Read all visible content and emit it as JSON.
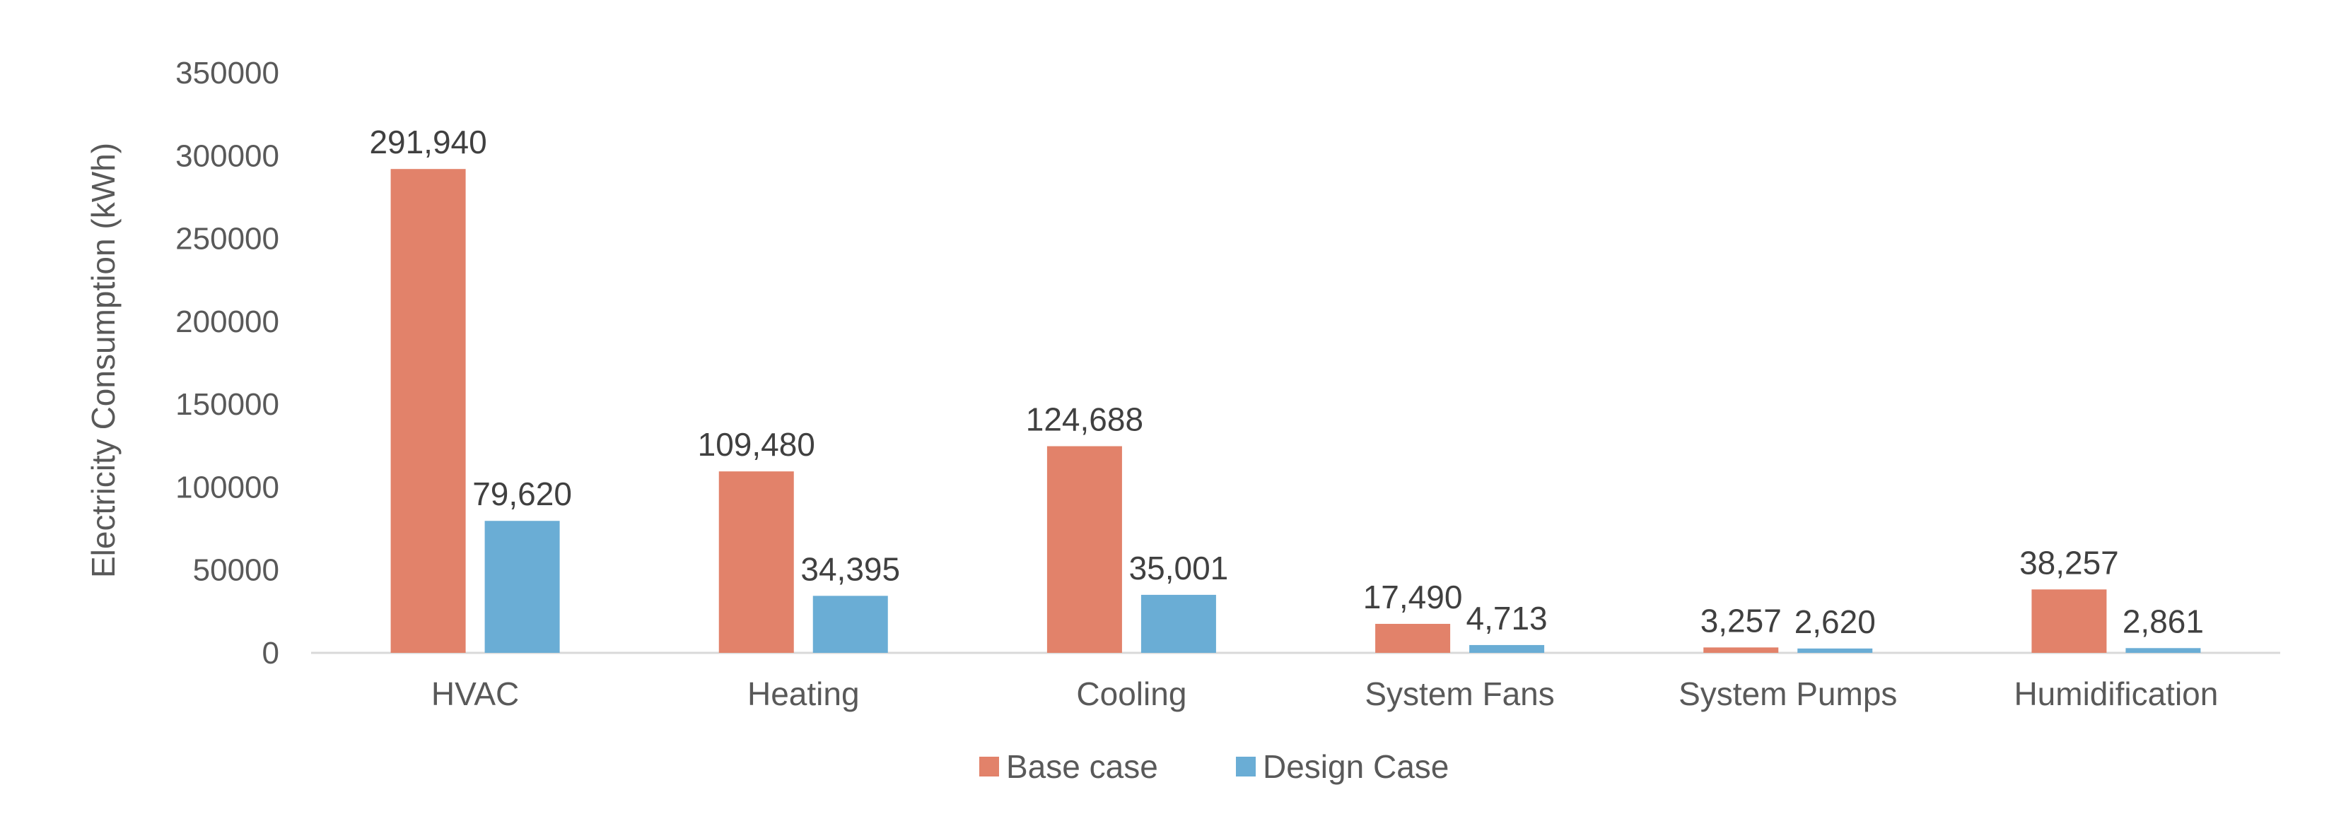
{
  "chart_data": {
    "type": "bar",
    "categories": [
      "HVAC",
      "Heating",
      "Cooling",
      "System Fans",
      "System Pumps",
      "Humidification"
    ],
    "series": [
      {
        "name": "Base case",
        "color": "#E2826A",
        "values": [
          291940,
          109480,
          124688,
          17490,
          3257,
          38257
        ],
        "labels": [
          "291,940",
          "109,480",
          "124,688",
          "17,490",
          "3,257",
          "38,257"
        ]
      },
      {
        "name": "Design Case",
        "color": "#6AADD5",
        "values": [
          79620,
          34395,
          35001,
          4713,
          2620,
          2861
        ],
        "labels": [
          "79,620",
          "34,395",
          "35,001",
          "4,713",
          "2,620",
          "2,861"
        ]
      }
    ],
    "ylabel": "Electricity Consumption (kWh)",
    "ylim": [
      0,
      350000
    ],
    "yticks": [
      "0",
      "50000",
      "100000",
      "150000",
      "200000",
      "250000",
      "300000",
      "350000"
    ],
    "grid": false,
    "legend": "bottom-center"
  }
}
